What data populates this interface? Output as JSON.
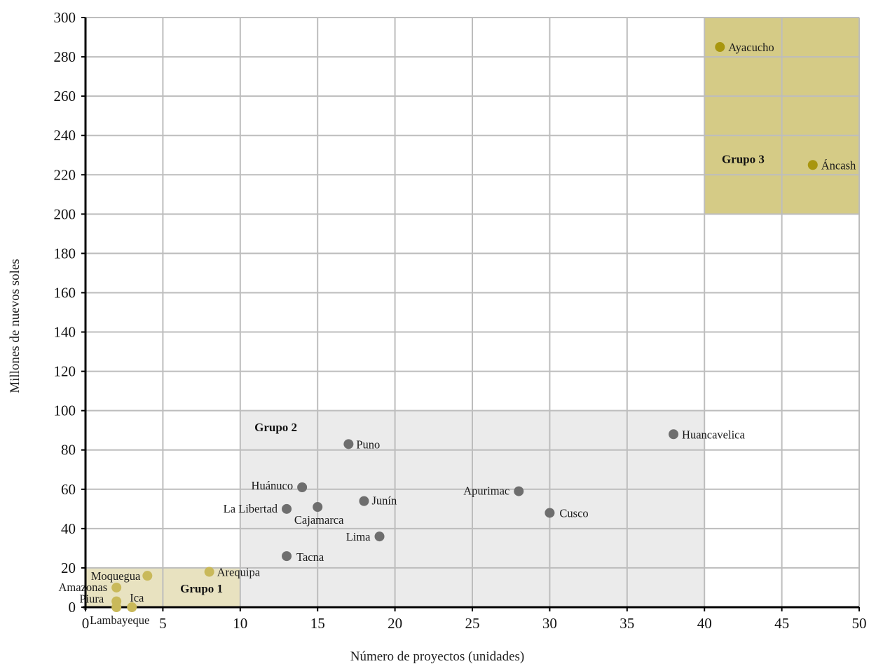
{
  "chart_data": {
    "type": "scatter",
    "title": "",
    "xlabel": "Número de proyectos (unidades)",
    "ylabel": "Millones de nuevos soles",
    "xlim": [
      0,
      50
    ],
    "ylim": [
      0,
      300
    ],
    "x_ticks": [
      0,
      5,
      10,
      15,
      20,
      25,
      30,
      35,
      40,
      45,
      50
    ],
    "y_ticks": [
      0,
      20,
      40,
      60,
      80,
      100,
      120,
      140,
      160,
      180,
      200,
      220,
      240,
      260,
      280,
      300
    ],
    "grid": true,
    "groups": [
      {
        "name": "Grupo 1",
        "x_range": [
          0,
          10
        ],
        "y_range": [
          0,
          20
        ],
        "color": "#e8e2c0"
      },
      {
        "name": "Grupo 2",
        "x_range": [
          10,
          40
        ],
        "y_range": [
          0,
          100
        ],
        "color": "#ebebeb"
      },
      {
        "name": "Grupo 3",
        "x_range": [
          40,
          50
        ],
        "y_range": [
          200,
          300
        ],
        "color": "#d5cb86"
      }
    ],
    "points": [
      {
        "label": "Ayacucho",
        "x": 41,
        "y": 285,
        "group": 3
      },
      {
        "label": "Áncash",
        "x": 47,
        "y": 225,
        "group": 3
      },
      {
        "label": "Huancavelica",
        "x": 38,
        "y": 88,
        "group": 2
      },
      {
        "label": "Puno",
        "x": 17,
        "y": 83,
        "group": 2
      },
      {
        "label": "Huánuco",
        "x": 14,
        "y": 61,
        "group": 2
      },
      {
        "label": "Apurimac",
        "x": 28,
        "y": 59,
        "group": 2
      },
      {
        "label": "Junín",
        "x": 18,
        "y": 54,
        "group": 2
      },
      {
        "label": "Cajamarca",
        "x": 15,
        "y": 51,
        "group": 2
      },
      {
        "label": "La Libertad",
        "x": 13,
        "y": 50,
        "group": 2
      },
      {
        "label": "Cusco",
        "x": 30,
        "y": 48,
        "group": 2
      },
      {
        "label": "Lima",
        "x": 19,
        "y": 36,
        "group": 2
      },
      {
        "label": "Tacna",
        "x": 13,
        "y": 26,
        "group": 2
      },
      {
        "label": "Arequipa",
        "x": 8,
        "y": 18,
        "group": 1
      },
      {
        "label": "Moquegua",
        "x": 4,
        "y": 16,
        "group": 1
      },
      {
        "label": "Amazonas",
        "x": 2,
        "y": 10,
        "group": 1
      },
      {
        "label": "Piura",
        "x": 2,
        "y": 3,
        "group": 1
      },
      {
        "label": "Ica",
        "x": 3,
        "y": 0,
        "group": 1
      },
      {
        "label": "Lambayeque",
        "x": 2,
        "y": 0,
        "group": 1
      }
    ]
  },
  "colors": {
    "group1_point": "#c9b95a",
    "group2_point": "#6e6e6e",
    "group3_point": "#a8960f",
    "grid": "#bdbdbd",
    "axis": "#000000"
  }
}
